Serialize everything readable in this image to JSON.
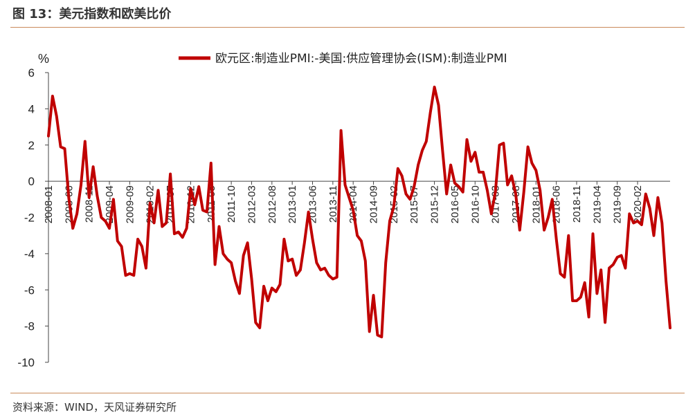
{
  "figure": {
    "title": "图 13：美元指数和欧美比价",
    "source": "资料来源：WIND，天风证券研究所"
  },
  "colors": {
    "line": "#c00000",
    "rule": "#c98a5a",
    "axis": "#444444"
  },
  "chart_data": {
    "type": "line",
    "unit": "%",
    "ylim": [
      -10,
      6
    ],
    "yticks": [
      -10,
      -8,
      -6,
      -4,
      -2,
      0,
      2,
      4,
      6
    ],
    "grid": false,
    "legend_position": "top-center",
    "x_tick_labels": [
      "2008-01",
      "2008-06",
      "2008-11",
      "2009-04",
      "2009-09",
      "2010-02",
      "2010-07",
      "2010-12",
      "2011-05",
      "2011-10",
      "2012-03",
      "2012-08",
      "2013-01",
      "2013-06",
      "2013-11",
      "2014-04",
      "2014-09",
      "2015-02",
      "2015-07",
      "2015-12",
      "2016-05",
      "2016-10",
      "2017-03",
      "2017-08",
      "2018-01",
      "2018-06",
      "2018-11",
      "2019-04",
      "2019-09",
      "2020-02"
    ],
    "series": [
      {
        "name": "欧元区:制造业PMI:-美国:供应管理协会(ISM):制造业PMI",
        "start": "2008-01",
        "values": [
          2.5,
          4.7,
          3.6,
          1.9,
          1.8,
          -0.9,
          -2.6,
          -1.8,
          -0.2,
          2.2,
          -0.9,
          0.8,
          -0.8,
          -2.0,
          -2.2,
          -2.6,
          -1.0,
          -3.3,
          -3.6,
          -5.2,
          -5.1,
          -5.2,
          -3.2,
          -3.6,
          -4.8,
          -1.2,
          -2.3,
          -0.5,
          -2.5,
          -2.3,
          0.4,
          -2.9,
          -2.8,
          -3.1,
          -2.6,
          -0.4,
          -1.3,
          -0.3,
          -1.6,
          -1.7,
          1.0,
          -4.6,
          -2.5,
          -4.0,
          -4.3,
          -4.5,
          -5.5,
          -6.2,
          -4.1,
          -3.4,
          -5.4,
          -7.8,
          -8.1,
          -5.8,
          -6.6,
          -5.9,
          -6.1,
          -5.7,
          -3.2,
          -4.4,
          -4.3,
          -5.2,
          -4.9,
          -3.4,
          -1.7,
          -3.2,
          -4.5,
          -4.9,
          -4.8,
          -5.2,
          -5.4,
          -5.3,
          2.8,
          -0.2,
          -0.9,
          -1.6,
          -3.0,
          -3.3,
          -4.4,
          -8.3,
          -6.3,
          -8.5,
          -8.6,
          -4.5,
          -2.2,
          -1.4,
          0.7,
          0.3,
          -0.7,
          -1.0,
          -0.3,
          0.9,
          1.7,
          2.2,
          3.8,
          5.2,
          4.2,
          1.7,
          -0.7,
          0.9,
          -0.1,
          -0.3,
          -0.6,
          2.3,
          1.1,
          1.6,
          0.5,
          0.5,
          -0.5,
          -1.8,
          -0.6,
          2.0,
          2.1,
          -0.2,
          0.3,
          -0.7,
          -2.7,
          -0.6,
          1.9,
          1.0,
          0.6,
          -0.5,
          -2.7,
          -2.0,
          -1.0,
          -3.2,
          -5.1,
          -5.3,
          -3.0,
          -6.6,
          -6.6,
          -6.4,
          -5.6,
          -7.5,
          -2.9,
          -6.2,
          -4.9,
          -7.8,
          -4.8,
          -4.6,
          -4.2,
          -4.1,
          -4.8,
          -1.8,
          -2.3,
          -2.2,
          -2.4,
          -0.7,
          -1.5,
          -3.0,
          -0.9,
          -2.3,
          -5.5,
          -8.1
        ]
      }
    ]
  }
}
